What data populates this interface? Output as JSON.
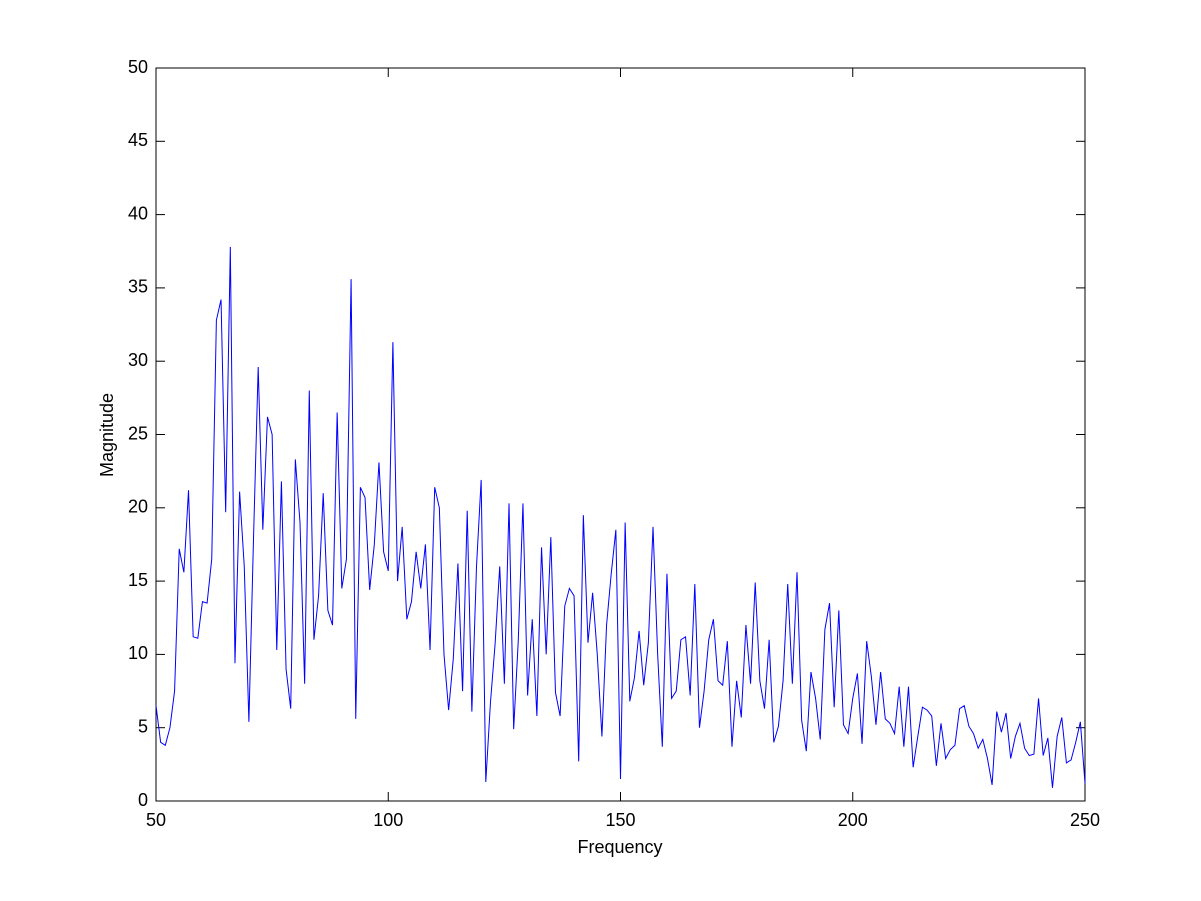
{
  "chart_data": {
    "type": "line",
    "xlabel": "Frequency",
    "ylabel": "Magnitude",
    "x": [
      50,
      51,
      52,
      53,
      54,
      55,
      56,
      57,
      58,
      59,
      60,
      61,
      62,
      63,
      64,
      65,
      66,
      67,
      68,
      69,
      70,
      71,
      72,
      73,
      74,
      75,
      76,
      77,
      78,
      79,
      80,
      81,
      82,
      83,
      84,
      85,
      86,
      87,
      88,
      89,
      90,
      91,
      92,
      93,
      94,
      95,
      96,
      97,
      98,
      99,
      100,
      101,
      102,
      103,
      104,
      105,
      106,
      107,
      108,
      109,
      110,
      111,
      112,
      113,
      114,
      115,
      116,
      117,
      118,
      119,
      120,
      121,
      122,
      123,
      124,
      125,
      126,
      127,
      128,
      129,
      130,
      131,
      132,
      133,
      134,
      135,
      136,
      137,
      138,
      139,
      140,
      141,
      142,
      143,
      144,
      145,
      146,
      147,
      148,
      149,
      150,
      151,
      152,
      153,
      154,
      155,
      156,
      157,
      158,
      159,
      160,
      161,
      162,
      163,
      164,
      165,
      166,
      167,
      168,
      169,
      170,
      171,
      172,
      173,
      174,
      175,
      176,
      177,
      178,
      179,
      180,
      181,
      182,
      183,
      184,
      185,
      186,
      187,
      188,
      189,
      190,
      191,
      192,
      193,
      194,
      195,
      196,
      197,
      198,
      199,
      200,
      201,
      202,
      203,
      204,
      205,
      206,
      207,
      208,
      209,
      210,
      211,
      212,
      213,
      214,
      215,
      216,
      217,
      218,
      219,
      220,
      221,
      222,
      223,
      224,
      225,
      226,
      227,
      228,
      229,
      230,
      231,
      232,
      233,
      234,
      235,
      236,
      237,
      238,
      239,
      240,
      241,
      242,
      243,
      244,
      245,
      246,
      247,
      248,
      249,
      250
    ],
    "series": [
      {
        "color": "#0000ff",
        "values": [
          6.5,
          4,
          3.8,
          5,
          7.5,
          17.2,
          15.6,
          21.2,
          11.2,
          11.1,
          13.6,
          13.5,
          16.5,
          32.8,
          34.2,
          19.7,
          37.8,
          9.4,
          21.1,
          16,
          5.4,
          18,
          29.6,
          18.5,
          26.2,
          25,
          10.3,
          21.8,
          9,
          6.3,
          23.3,
          19,
          8,
          28,
          11,
          14,
          21,
          13,
          12,
          26.5,
          14.5,
          16.5,
          35.6,
          5.6,
          21.4,
          20.7,
          14.4,
          17.5,
          23.1,
          17,
          15.7,
          31.3,
          15,
          18.7,
          12.4,
          13.6,
          17,
          14.5,
          17.5,
          10.3,
          21.4,
          20,
          10,
          6.2,
          9.7,
          16.2,
          7.5,
          19.8,
          6.1,
          16,
          21.9,
          1.3,
          6.7,
          10.7,
          16,
          8,
          20.3,
          4.9,
          11,
          20.3,
          7.2,
          12.4,
          5.8,
          17.3,
          10,
          18,
          7.4,
          5.8,
          13.3,
          14.5,
          14,
          2.7,
          19.5,
          10.8,
          14.2,
          10,
          4.4,
          12,
          15.5,
          18.5,
          1.5,
          19,
          6.8,
          8.4,
          11.6,
          7.9,
          10.8,
          18.7,
          10,
          3.7,
          15.5,
          7,
          7.5,
          11,
          11.2,
          7.2,
          14.8,
          5,
          7.5,
          11,
          12.4,
          8.2,
          7.9,
          10.9,
          3.7,
          8.2,
          5.7,
          12,
          8,
          14.9,
          8.2,
          6.3,
          11,
          4,
          5.1,
          8.2,
          14.8,
          8,
          15.6,
          5.5,
          3.4,
          8.8,
          7,
          4.2,
          11.7,
          13.5,
          6.4,
          13,
          5.2,
          4.6,
          7,
          8.7,
          3.9,
          10.9,
          8.5,
          5.2,
          8.8,
          5.6,
          5.3,
          4.6,
          7.8,
          3.7,
          7.8,
          2.3,
          4.4,
          6.4,
          6.2,
          5.8,
          2.4,
          5.3,
          2.9,
          3.5,
          3.8,
          6.3,
          6.5,
          5.1,
          4.6,
          3.6,
          4.2,
          2.9,
          1.1,
          6.1,
          4.7,
          6,
          2.9,
          4.4,
          5.3,
          3.6,
          3.1,
          3.2,
          7,
          3.1,
          4.3,
          0.9,
          4.4,
          5.7,
          2.6,
          2.8,
          4,
          5.4,
          1.2
        ]
      }
    ],
    "xlim": [
      50,
      250
    ],
    "xticks": [
      50,
      100,
      150,
      200,
      250
    ],
    "ylim": [
      0,
      50
    ],
    "yticks": [
      0,
      5,
      10,
      15,
      20,
      25,
      30,
      35,
      40,
      45,
      50
    ],
    "grid": false
  }
}
